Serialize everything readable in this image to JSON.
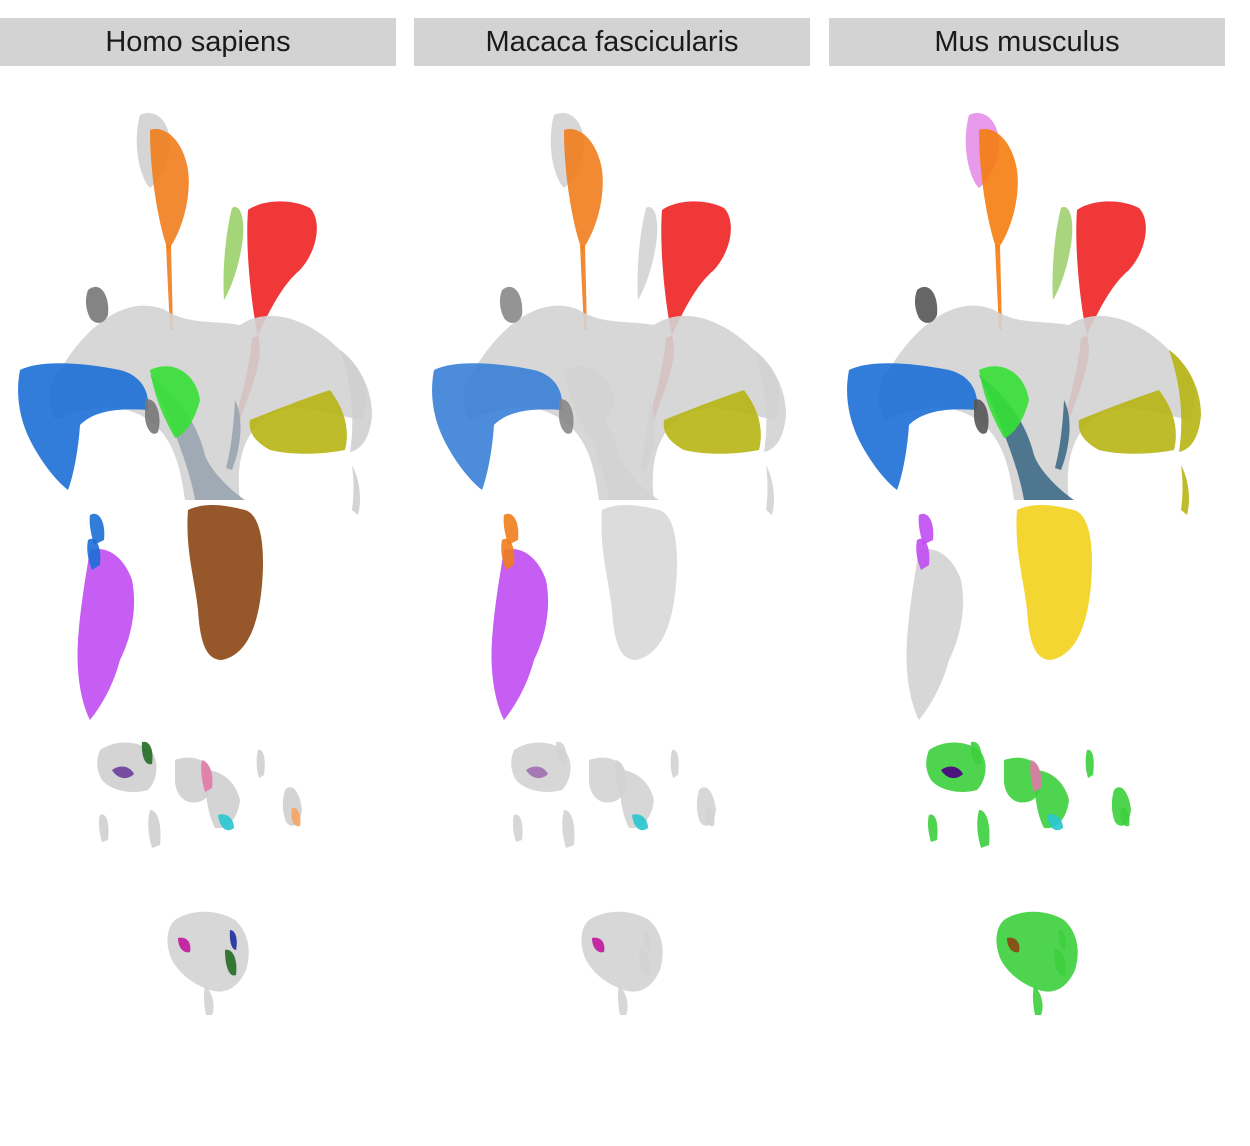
{
  "chart_data": {
    "type": "scatter",
    "title": "",
    "xlabel": "",
    "ylabel": "",
    "grid": false,
    "legend": "none",
    "panels": [
      {
        "name": "Homo sapiens",
        "clusters": [
          {
            "key": "top_grey",
            "color": "#d0d0d0"
          },
          {
            "key": "top_stripe",
            "color": "#f07d1c"
          },
          {
            "key": "upper_right",
            "color": "#ee2222"
          },
          {
            "key": "green_left",
            "color": "#9ad26a"
          },
          {
            "key": "center_web",
            "color": "#d3d3d3"
          },
          {
            "key": "center_ridge",
            "color": "#9aa5b0"
          },
          {
            "key": "left_arm",
            "color": "#1c6fd6"
          },
          {
            "key": "left_cap",
            "color": "#777777"
          },
          {
            "key": "mid_green",
            "color": "#35e035"
          },
          {
            "key": "right_arm",
            "color": "#b8b515"
          },
          {
            "key": "right_cap",
            "color": "#cfcfcf"
          },
          {
            "key": "lower_center",
            "color": "#8b4513"
          },
          {
            "key": "lower_left",
            "color": "#c04cf2"
          },
          {
            "key": "lower_left_tip",
            "color": "#1c6fd6"
          },
          {
            "key": "small_islands",
            "color": "#cfcfcf"
          },
          {
            "key": "small_marks_a",
            "color": "#e07aa8"
          },
          {
            "key": "small_marks_b",
            "color": "#29c7cf"
          },
          {
            "key": "small_marks_c",
            "color": "#246b24"
          },
          {
            "key": "small_marks_d",
            "color": "#6a3d9a"
          },
          {
            "key": "small_marks_e",
            "color": "#f4a460"
          },
          {
            "key": "bottom_island",
            "color": "#d3d3d3"
          },
          {
            "key": "bottom_marks_a",
            "color": "#246b24"
          },
          {
            "key": "bottom_marks_b",
            "color": "#1f2fa0"
          },
          {
            "key": "bottom_marks_c",
            "color": "#c0179b"
          }
        ]
      },
      {
        "name": "Macaca fascicularis",
        "clusters": [
          {
            "key": "top_grey",
            "color": "#d3d3d3"
          },
          {
            "key": "top_stripe",
            "color": "#f07d1c"
          },
          {
            "key": "upper_right",
            "color": "#ee2222"
          },
          {
            "key": "green_left",
            "color": "#d3d3d3"
          },
          {
            "key": "center_web",
            "color": "#d3d3d3"
          },
          {
            "key": "center_ridge",
            "color": "#d3d3d3"
          },
          {
            "key": "left_arm",
            "color": "#3a7fd6"
          },
          {
            "key": "left_cap",
            "color": "#888888"
          },
          {
            "key": "mid_green",
            "color": "#d3d3d3"
          },
          {
            "key": "right_arm",
            "color": "#b8b515"
          },
          {
            "key": "right_cap",
            "color": "#d3d3d3"
          },
          {
            "key": "lower_center",
            "color": "#d8d8d8"
          },
          {
            "key": "lower_left",
            "color": "#c04cf2"
          },
          {
            "key": "lower_left_tip",
            "color": "#f07d1c"
          },
          {
            "key": "small_islands",
            "color": "#d3d3d3"
          },
          {
            "key": "small_marks_a",
            "color": "#d3d3d3"
          },
          {
            "key": "small_marks_b",
            "color": "#29c7cf"
          },
          {
            "key": "small_marks_c",
            "color": "#d3d3d3"
          },
          {
            "key": "small_marks_d",
            "color": "#a070b0"
          },
          {
            "key": "small_marks_e",
            "color": "#d3d3d3"
          },
          {
            "key": "bottom_island",
            "color": "#d3d3d3"
          },
          {
            "key": "bottom_marks_a",
            "color": "#d3d3d3"
          },
          {
            "key": "bottom_marks_b",
            "color": "#d3d3d3"
          },
          {
            "key": "bottom_marks_c",
            "color": "#c0179b"
          }
        ]
      },
      {
        "name": "Mus musculus",
        "clusters": [
          {
            "key": "top_grey",
            "color": "#e58fe8"
          },
          {
            "key": "top_stripe",
            "color": "#f57d10"
          },
          {
            "key": "upper_right",
            "color": "#ee2222"
          },
          {
            "key": "green_left",
            "color": "#a0d070"
          },
          {
            "key": "center_web",
            "color": "#d3d3d3"
          },
          {
            "key": "center_ridge",
            "color": "#3f6b86"
          },
          {
            "key": "left_arm",
            "color": "#1c6fd6"
          },
          {
            "key": "left_cap",
            "color": "#555555"
          },
          {
            "key": "mid_green",
            "color": "#35e035"
          },
          {
            "key": "right_arm",
            "color": "#b8b515"
          },
          {
            "key": "right_cap",
            "color": "#b8b515"
          },
          {
            "key": "lower_center",
            "color": "#f2d21c"
          },
          {
            "key": "lower_left",
            "color": "#d3d3d3"
          },
          {
            "key": "lower_left_tip",
            "color": "#c04cf2"
          },
          {
            "key": "small_islands",
            "color": "#3ccf3c"
          },
          {
            "key": "small_marks_a",
            "color": "#e07aa8"
          },
          {
            "key": "small_marks_b",
            "color": "#29c7cf"
          },
          {
            "key": "small_marks_c",
            "color": "#3ccf3c"
          },
          {
            "key": "small_marks_d",
            "color": "#4b0082"
          },
          {
            "key": "small_marks_e",
            "color": "#3ccf3c"
          },
          {
            "key": "bottom_island",
            "color": "#3ccf3c"
          },
          {
            "key": "bottom_marks_a",
            "color": "#3ccf3c"
          },
          {
            "key": "bottom_marks_b",
            "color": "#3ccf3c"
          },
          {
            "key": "bottom_marks_c",
            "color": "#8b4513"
          }
        ]
      }
    ]
  }
}
